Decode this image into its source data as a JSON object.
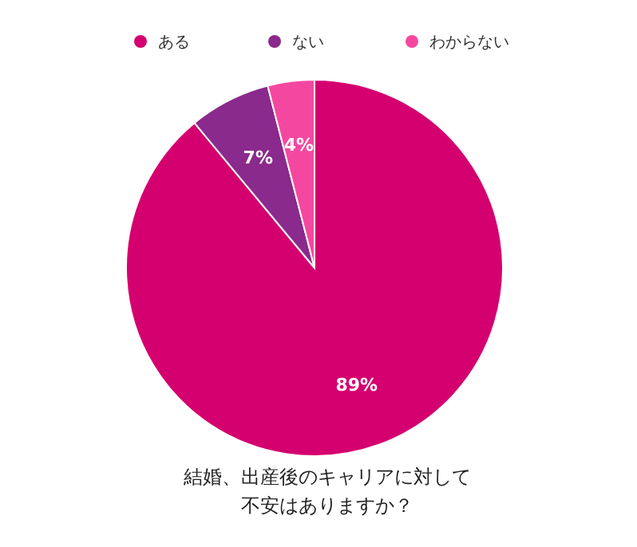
{
  "chart_data": {
    "type": "pie",
    "title": "結婚、出産後のキャリアに対して不安はありますか？",
    "categories": [
      "ある",
      "ない",
      "わからない"
    ],
    "values": [
      89,
      7,
      4
    ],
    "colors": [
      "#d5006f",
      "#8a2a8c",
      "#f448a0"
    ],
    "value_labels": [
      "89%",
      "7%",
      "4%"
    ],
    "legend": "top"
  }
}
